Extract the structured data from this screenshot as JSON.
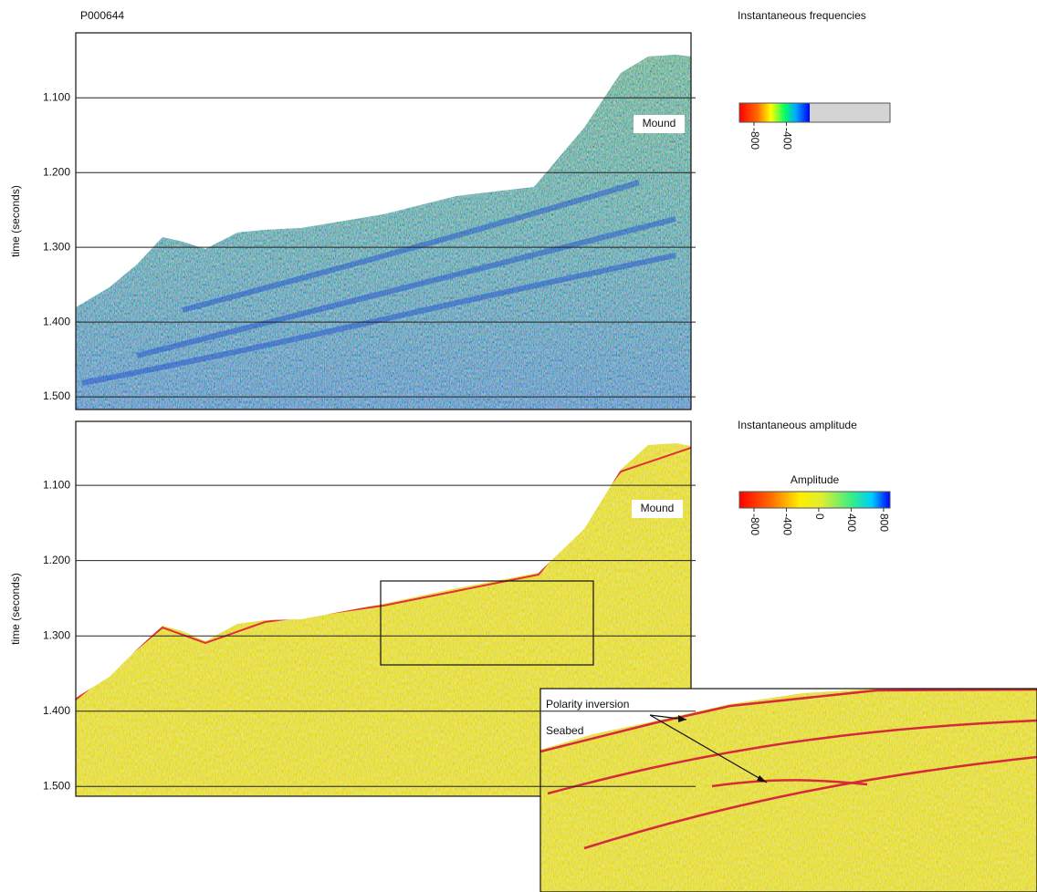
{
  "figure_id": "P000644",
  "panels": [
    {
      "title": "Instantaneous frequencies",
      "annotation": "Mound",
      "y_label": "time (seconds)",
      "ylim": [
        1.013,
        1.517
      ],
      "yticks": [
        {
          "value": 1.1,
          "label": "1.100"
        },
        {
          "value": 1.2,
          "label": "1.200"
        },
        {
          "value": 1.3,
          "label": "1.300"
        },
        {
          "value": 1.4,
          "label": "1.400"
        },
        {
          "value": 1.5,
          "label": "1.500"
        }
      ],
      "colorbar": {
        "clim": [
          -980,
          880
        ],
        "ticks": [
          -800,
          -400
        ]
      }
    },
    {
      "title": "Instantaneous amplitude",
      "annotation": "Mound",
      "y_label": "time (seconds)",
      "ylim": [
        1.015,
        1.513
      ],
      "yticks": [
        {
          "value": 1.1,
          "label": "1.100"
        },
        {
          "value": 1.2,
          "label": "1.200"
        },
        {
          "value": 1.3,
          "label": "1.300"
        },
        {
          "value": 1.4,
          "label": "1.400"
        },
        {
          "value": 1.5,
          "label": "1.500"
        }
      ],
      "colorbar": {
        "title": "Amplitude",
        "clim": [
          -980,
          880
        ],
        "ticks": [
          -800,
          -400,
          0,
          400,
          800
        ]
      }
    }
  ],
  "inset": {
    "annotations": [
      "Polarity inversion",
      "Seabed"
    ]
  }
}
